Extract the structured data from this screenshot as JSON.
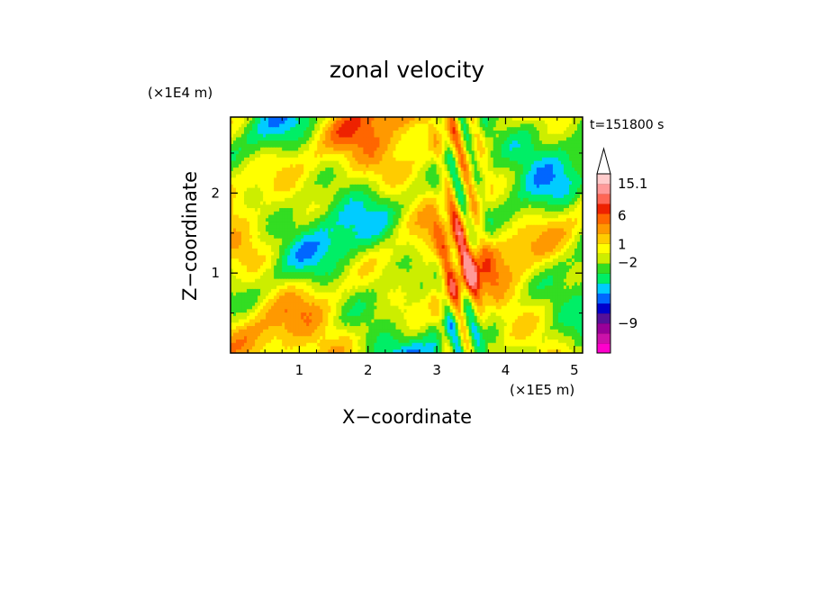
{
  "chart_data": {
    "type": "heatmap",
    "title": "zonal velocity",
    "xlabel": "X−coordinate",
    "ylabel": "Z−coordinate",
    "x_unit": "(×1E5 m)",
    "y_unit": "(×1E4 m)",
    "time_label": "t=151800 s",
    "xlim": [
      0,
      5.12
    ],
    "ylim": [
      0,
      2.95
    ],
    "x_ticks": [
      {
        "value": 1,
        "label": "1"
      },
      {
        "value": 2,
        "label": "2"
      },
      {
        "value": 3,
        "label": "3"
      },
      {
        "value": 4,
        "label": "4"
      },
      {
        "value": 5,
        "label": "5"
      }
    ],
    "y_ticks": [
      {
        "value": 1,
        "label": "1"
      },
      {
        "value": 2,
        "label": "2"
      }
    ],
    "colorbar": {
      "levels": [
        {
          "color": "#ff00cc"
        },
        {
          "color": "#cc11aa"
        },
        {
          "color": "#990099"
        },
        {
          "color": "#551199"
        },
        {
          "color": "#0000cc"
        },
        {
          "color": "#0066ff"
        },
        {
          "color": "#00ccff"
        },
        {
          "color": "#00ee66"
        },
        {
          "color": "#33dd22"
        },
        {
          "color": "#ccee00"
        },
        {
          "color": "#ffff00"
        },
        {
          "color": "#ffcc00"
        },
        {
          "color": "#ff9900"
        },
        {
          "color": "#ff6600"
        },
        {
          "color": "#ee2200"
        },
        {
          "color": "#ff6655"
        },
        {
          "color": "#ff9999"
        },
        {
          "color": "#ffcccc"
        }
      ],
      "labels": [
        {
          "value": 15.1,
          "label": "15.1",
          "at_level": 17
        },
        {
          "value": 6,
          "label": "6",
          "at_level": 13.8
        },
        {
          "value": 1,
          "label": "1",
          "at_level": 10.9
        },
        {
          "value": -2,
          "label": "−2",
          "at_level": 9.1
        },
        {
          "value": -9,
          "label": "−9",
          "at_level": 3.0
        }
      ]
    }
  }
}
